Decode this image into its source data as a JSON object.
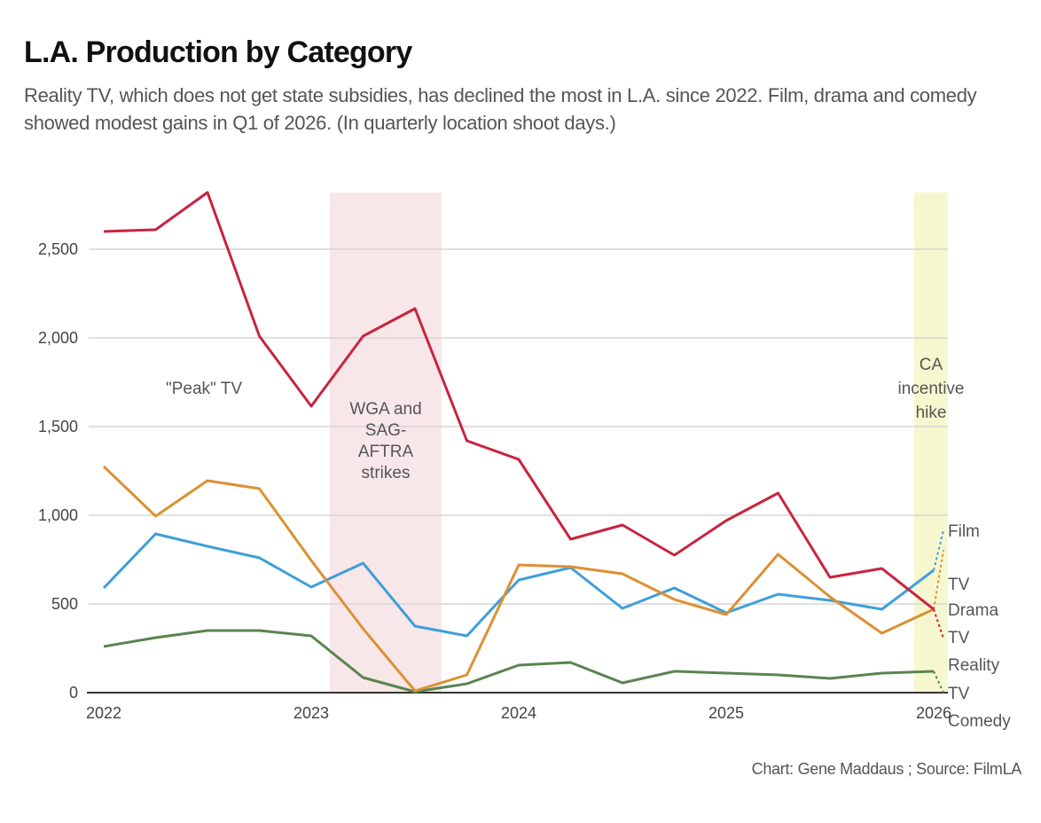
{
  "title": "L.A. Production by Category",
  "subtitle": "Reality TV, which does not get state subsidies, has declined the most in L.A. since 2022. Film, drama and comedy showed modest gains in Q1 of 2026. (In quarterly location shoot days.)",
  "footer": "Chart: Gene Maddaus ; Source: FilmLA",
  "chart_data": {
    "type": "line",
    "x": [
      "2022-Q1",
      "2022-Q2",
      "2022-Q3",
      "2022-Q4",
      "2023-Q1",
      "2023-Q2",
      "2023-Q3",
      "2023-Q4",
      "2024-Q1",
      "2024-Q2",
      "2024-Q3",
      "2024-Q4",
      "2025-Q1",
      "2025-Q2",
      "2025-Q3",
      "2025-Q4",
      "2026-Q1"
    ],
    "x_ticks": [
      "2022",
      "2023",
      "2024",
      "2025",
      "2026"
    ],
    "y_ticks": [
      "0",
      "500",
      "1,000",
      "1,500",
      "2,000",
      "2,500"
    ],
    "y_tick_values": [
      0,
      500,
      1000,
      1500,
      2000,
      2500
    ],
    "ylim": [
      0,
      2830
    ],
    "grid": true,
    "series": [
      {
        "name": "TV Reality",
        "color": "#c8243f",
        "label_lines": [
          "TV",
          "Reality"
        ],
        "values": [
          2600,
          2610,
          2820,
          2010,
          1615,
          2010,
          2165,
          1420,
          1315,
          865,
          945,
          775,
          970,
          1125,
          650,
          700,
          470
        ]
      },
      {
        "name": "TV Drama",
        "color": "#dc9035",
        "label_lines": [
          "TV",
          "Drama"
        ],
        "values": [
          1275,
          995,
          1195,
          1150,
          745,
          360,
          10,
          100,
          720,
          710,
          670,
          525,
          440,
          780,
          540,
          335,
          470
        ]
      },
      {
        "name": "Film",
        "color": "#3f9fd8",
        "label_lines": [
          "Film"
        ],
        "values": [
          590,
          895,
          825,
          760,
          595,
          730,
          375,
          320,
          635,
          705,
          475,
          590,
          450,
          555,
          520,
          470,
          690
        ]
      },
      {
        "name": "TV Comedy",
        "color": "#5a8450",
        "label_lines": [
          "TV",
          "Comedy"
        ],
        "values": [
          260,
          310,
          350,
          350,
          320,
          85,
          5,
          50,
          155,
          170,
          55,
          120,
          110,
          100,
          80,
          110,
          120
        ]
      }
    ],
    "annotations": [
      {
        "text": "\"Peak\" TV",
        "lines": [
          "\"Peak\" TV"
        ]
      },
      {
        "text": "WGA and SAG-AFTRA strikes",
        "lines": [
          "WGA and",
          "SAG-",
          "AFTRA",
          "strikes"
        ],
        "band": [
          "2023-Q2",
          "2023-Q3"
        ],
        "band_color": "#f8e7e9"
      },
      {
        "text": "CA incentive hike",
        "lines": [
          "CA",
          "incentive",
          "hike"
        ],
        "band": [
          "2026-Q1"
        ],
        "band_color": "#f7f7cf"
      }
    ]
  }
}
